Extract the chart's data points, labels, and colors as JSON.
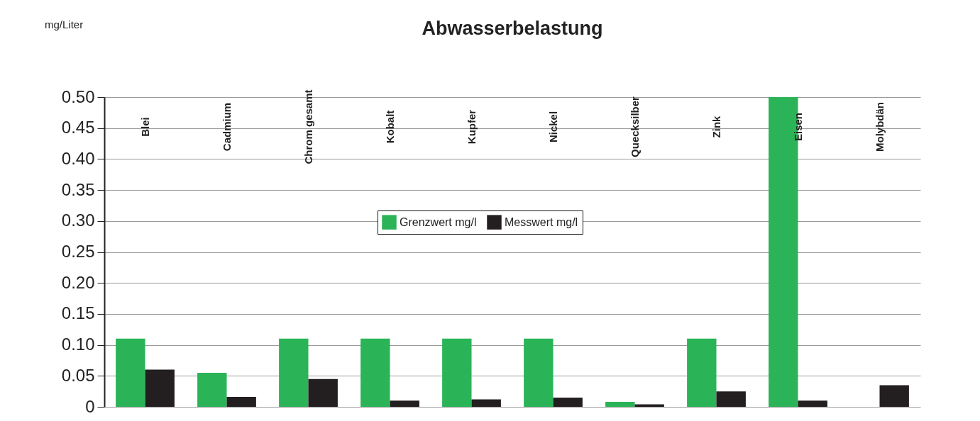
{
  "chart_data": {
    "type": "bar",
    "title": "Abwasserbelastung",
    "annotations": [
      "mg/Liter"
    ],
    "categories": [
      "Blei",
      "Cadmium",
      "Chrom gesamt",
      "Kobalt",
      "Kupfer",
      "Nickel",
      "Quecksilber",
      "Zink",
      "Eisen",
      "Molybdän"
    ],
    "series": [
      {
        "name": "Grenzwert mg/l",
        "color": "#2ab457",
        "values": [
          0.11,
          0.055,
          0.11,
          0.11,
          0.11,
          0.11,
          0.008,
          0.11,
          0.5,
          null
        ]
      },
      {
        "name": "Messwert mg/l",
        "color": "#231f20",
        "values": [
          0.06,
          0.016,
          0.045,
          0.01,
          0.012,
          0.015,
          0.004,
          0.025,
          0.01,
          0.035
        ]
      }
    ],
    "ylim": [
      0,
      0.5
    ],
    "yticks": [
      0,
      0.05,
      {
        "value": 0.1,
        "label": "0.10"
      },
      0.15,
      {
        "value": 0.2,
        "label": "0.20"
      },
      0.25,
      {
        "value": 0.3,
        "label": "0.30"
      },
      0.35,
      {
        "value": 0.4,
        "label": "0.40"
      },
      0.45,
      {
        "value": 0.5,
        "label": "0.50"
      }
    ],
    "grid": "y",
    "legend": "center"
  }
}
